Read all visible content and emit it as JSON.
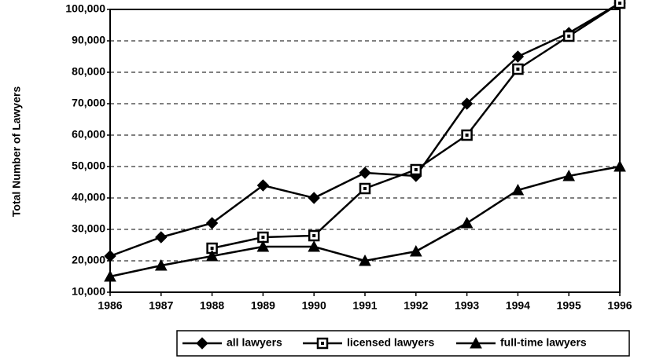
{
  "chart_data": {
    "type": "line",
    "y_label": "Total Number of Lawyers",
    "x": [
      1986,
      1987,
      1988,
      1989,
      1990,
      1991,
      1992,
      1993,
      1994,
      1995,
      1996
    ],
    "xlim": [
      1986,
      1996
    ],
    "xticks": [
      1986,
      1987,
      1988,
      1989,
      1990,
      1991,
      1992,
      1993,
      1994,
      1995,
      1996
    ],
    "ylim": [
      10000,
      100000
    ],
    "yticks": [
      {
        "value": 10000,
        "label": "10,000"
      },
      {
        "value": 20000,
        "label": "20,000"
      },
      {
        "value": 30000,
        "label": "30,000"
      },
      {
        "value": 40000,
        "label": "40,000"
      },
      {
        "value": 50000,
        "label": "50,000"
      },
      {
        "value": 60000,
        "label": "60,000"
      },
      {
        "value": 70000,
        "label": "70,000"
      },
      {
        "value": 80000,
        "label": "80,000"
      },
      {
        "value": 90000,
        "label": "90,000"
      },
      {
        "value": 100000,
        "label": "100,000"
      }
    ],
    "grid": true,
    "legend": "bottom",
    "series": [
      {
        "name": "all lawyers",
        "color": "#000000",
        "marker": "diamond",
        "values": [
          21500,
          27500,
          32000,
          44000,
          40000,
          48000,
          47000,
          70000,
          85000,
          92500,
          102000
        ]
      },
      {
        "name": "licensed lawyers",
        "color": "#000000",
        "marker": "square",
        "values": [
          null,
          null,
          24000,
          27500,
          28000,
          43000,
          49000,
          60000,
          81000,
          91500,
          102000
        ]
      },
      {
        "name": "full-time lawyers",
        "color": "#000000",
        "marker": "triangle",
        "values": [
          15000,
          18500,
          21500,
          24500,
          24500,
          20000,
          23000,
          32000,
          42500,
          47000,
          50000
        ]
      }
    ]
  }
}
